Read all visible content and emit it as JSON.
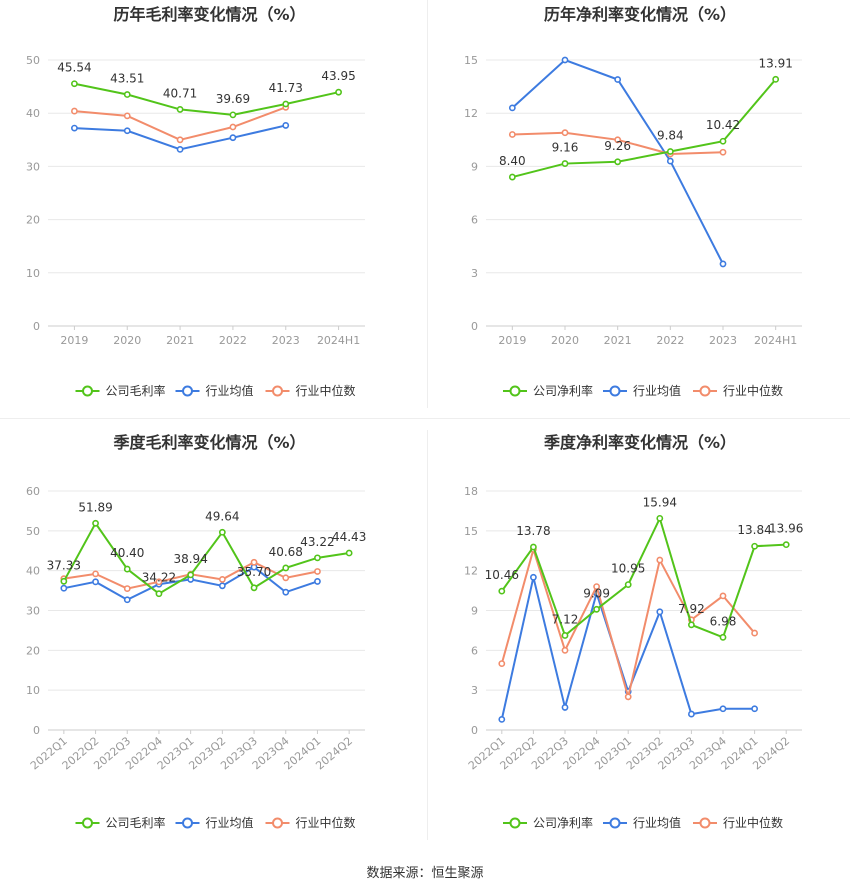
{
  "colors": {
    "company": "#52c41a",
    "industry_avg": "#3d7be0",
    "industry_median": "#f28c6b",
    "grid": "#e8e8e8",
    "axis_text": "#999999",
    "title": "#333333"
  },
  "legend": {
    "gross_company": "公司毛利率",
    "net_company": "公司净利率",
    "industry_avg": "行业均值",
    "industry_median": "行业中位数"
  },
  "source_text": "数据来源：恒生聚源",
  "chart_data": [
    {
      "type": "line",
      "title": "历年毛利率变化情况（%）",
      "categories": [
        "2019",
        "2020",
        "2021",
        "2022",
        "2023",
        "2024H1"
      ],
      "ylim": [
        0,
        50
      ],
      "yticks": [
        0,
        10,
        20,
        30,
        40,
        50
      ],
      "grid": true,
      "legend_position": "bottom",
      "series": [
        {
          "name": "公司毛利率",
          "values": [
            45.54,
            43.51,
            40.71,
            39.69,
            41.73,
            43.95
          ],
          "labels": [
            "45.54",
            "43.51",
            "40.71",
            "39.69",
            "41.73",
            "43.95"
          ]
        },
        {
          "name": "行业均值",
          "values": [
            37.2,
            36.7,
            33.2,
            35.4,
            37.7,
            null
          ]
        },
        {
          "name": "行业中位数",
          "values": [
            40.4,
            39.5,
            35.0,
            37.4,
            41.1,
            null
          ]
        }
      ]
    },
    {
      "type": "line",
      "title": "历年净利率变化情况（%）",
      "categories": [
        "2019",
        "2020",
        "2021",
        "2022",
        "2023",
        "2024H1"
      ],
      "ylim": [
        0,
        15
      ],
      "yticks": [
        0,
        3,
        6,
        9,
        12,
        15
      ],
      "grid": true,
      "legend_position": "bottom",
      "series": [
        {
          "name": "公司净利率",
          "values": [
            8.4,
            9.16,
            9.26,
            9.84,
            10.42,
            13.91
          ],
          "labels": [
            "8.40",
            "9.16",
            "9.26",
            "9.84",
            "10.42",
            "13.91"
          ]
        },
        {
          "name": "行业均值",
          "values": [
            12.3,
            15.0,
            13.9,
            9.3,
            3.5,
            null
          ]
        },
        {
          "name": "行业中位数",
          "values": [
            10.8,
            10.9,
            10.5,
            9.7,
            9.8,
            null
          ]
        }
      ]
    },
    {
      "type": "line",
      "title": "季度毛利率变化情况（%）",
      "categories": [
        "2022Q1",
        "2022Q2",
        "2022Q3",
        "2022Q4",
        "2023Q1",
        "2023Q2",
        "2023Q3",
        "2023Q4",
        "2024Q1",
        "2024Q2"
      ],
      "ylim": [
        0,
        60
      ],
      "yticks": [
        0,
        10,
        20,
        30,
        40,
        50,
        60
      ],
      "grid": true,
      "legend_position": "bottom",
      "series": [
        {
          "name": "公司毛利率",
          "values": [
            37.33,
            51.89,
            40.4,
            34.22,
            38.94,
            49.64,
            35.7,
            40.68,
            43.22,
            44.43
          ],
          "labels": [
            "37.33",
            "51.89",
            "40.40",
            "34.22",
            "38.94",
            "49.64",
            "35.70",
            "40.68",
            "43.22",
            "44.43"
          ]
        },
        {
          "name": "行业均值",
          "values": [
            35.6,
            37.2,
            32.7,
            36.6,
            37.8,
            36.2,
            40.9,
            34.6,
            37.3,
            null
          ]
        },
        {
          "name": "行业中位数",
          "values": [
            38.0,
            39.2,
            35.5,
            37.2,
            39.1,
            37.8,
            42.1,
            38.2,
            39.8,
            null
          ]
        }
      ]
    },
    {
      "type": "line",
      "title": "季度净利率变化情况（%）",
      "categories": [
        "2022Q1",
        "2022Q2",
        "2022Q3",
        "2022Q4",
        "2023Q1",
        "2023Q2",
        "2023Q3",
        "2023Q4",
        "2024Q1",
        "2024Q2"
      ],
      "ylim": [
        0,
        18
      ],
      "yticks": [
        0,
        3,
        6,
        9,
        12,
        15,
        18
      ],
      "grid": true,
      "legend_position": "bottom",
      "series": [
        {
          "name": "公司净利率",
          "values": [
            10.46,
            13.78,
            7.12,
            9.09,
            10.95,
            15.94,
            7.92,
            6.98,
            13.84,
            13.96
          ],
          "labels": [
            "10.46",
            "13.78",
            "7.12",
            "9.09",
            "10.95",
            "15.94",
            "7.92",
            "6.98",
            "13.84",
            "13.96"
          ]
        },
        {
          "name": "行业均值",
          "values": [
            0.8,
            11.5,
            1.7,
            10.3,
            2.9,
            8.9,
            1.2,
            1.6,
            1.6,
            null
          ]
        },
        {
          "name": "行业中位数",
          "values": [
            5.0,
            13.6,
            6.0,
            10.8,
            2.5,
            12.8,
            8.3,
            10.1,
            7.3,
            null
          ]
        }
      ]
    }
  ]
}
